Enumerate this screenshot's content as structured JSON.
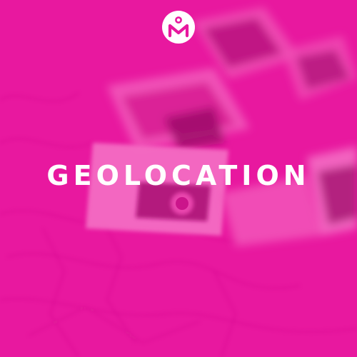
{
  "brand": {
    "logo_icon": "brand-monogram-icon"
  },
  "headline": {
    "text": "GEOLOCATION"
  },
  "colors": {
    "overlay": "#e8189f",
    "overlay_dark": "#c81087",
    "overlay_light": "#f04cb4",
    "text": "#ffffff",
    "logo_fill": "#ffffff",
    "logo_mark": "#e8189f"
  },
  "background": {
    "description_icon": "map-with-photos-image"
  }
}
